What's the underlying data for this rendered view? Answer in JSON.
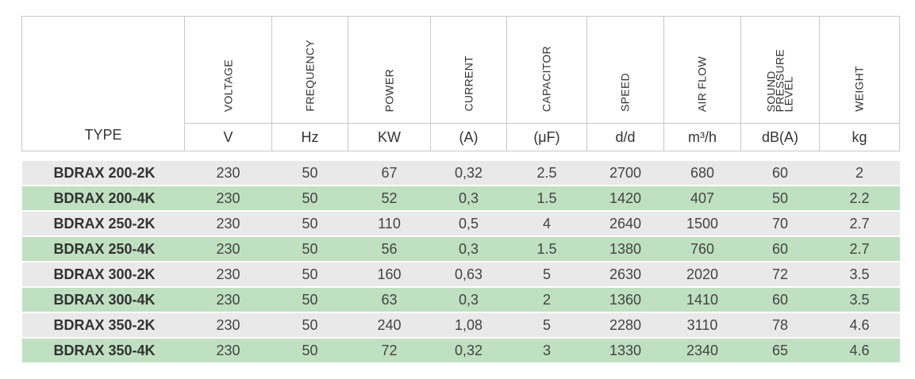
{
  "headers": {
    "type": "TYPE",
    "columns": [
      {
        "label": "VOLTAGE",
        "unit": "V"
      },
      {
        "label": "FREQUENCY",
        "unit": "Hz"
      },
      {
        "label": "POWER",
        "unit": "KW"
      },
      {
        "label": "CURRENT",
        "unit": "(A)"
      },
      {
        "label": "CAPACITOR",
        "unit": "(μF)"
      },
      {
        "label": "SPEED",
        "unit": "d/d"
      },
      {
        "label": "AIR FLOW",
        "unit": "m³/h"
      },
      {
        "label": "SOUND\nPRESSURE\nLEVEL",
        "unit": "dB(A)"
      },
      {
        "label": "WEIGHT",
        "unit": "kg"
      }
    ]
  },
  "rows": [
    {
      "type": "BDRAX 200-2K",
      "voltage": "230",
      "frequency": "50",
      "power": "67",
      "current": "0,32",
      "capacitor": "2.5",
      "speed": "2700",
      "air_flow": "680",
      "sound": "60",
      "weight": "2"
    },
    {
      "type": "BDRAX 200-4K",
      "voltage": "230",
      "frequency": "50",
      "power": "52",
      "current": "0,3",
      "capacitor": "1.5",
      "speed": "1420",
      "air_flow": "407",
      "sound": "50",
      "weight": "2.2"
    },
    {
      "type": "BDRAX 250-2K",
      "voltage": "230",
      "frequency": "50",
      "power": "110",
      "current": "0,5",
      "capacitor": "4",
      "speed": "2640",
      "air_flow": "1500",
      "sound": "70",
      "weight": "2.7"
    },
    {
      "type": "BDRAX 250-4K",
      "voltage": "230",
      "frequency": "50",
      "power": "56",
      "current": "0,3",
      "capacitor": "1.5",
      "speed": "1380",
      "air_flow": "760",
      "sound": "60",
      "weight": "2.7"
    },
    {
      "type": "BDRAX 300-2K",
      "voltage": "230",
      "frequency": "50",
      "power": "160",
      "current": "0,63",
      "capacitor": "5",
      "speed": "2630",
      "air_flow": "2020",
      "sound": "72",
      "weight": "3.5"
    },
    {
      "type": "BDRAX 300-4K",
      "voltage": "230",
      "frequency": "50",
      "power": "63",
      "current": "0,3",
      "capacitor": "2",
      "speed": "1360",
      "air_flow": "1410",
      "sound": "60",
      "weight": "3.5"
    },
    {
      "type": "BDRAX 350-2K",
      "voltage": "230",
      "frequency": "50",
      "power": "240",
      "current": "1,08",
      "capacitor": "5",
      "speed": "2280",
      "air_flow": "3110",
      "sound": "78",
      "weight": "4.6"
    },
    {
      "type": "BDRAX 350-4K",
      "voltage": "230",
      "frequency": "50",
      "power": "72",
      "current": "0,32",
      "capacitor": "3",
      "speed": "1330",
      "air_flow": "2340",
      "sound": "65",
      "weight": "4.6"
    }
  ],
  "colors": {
    "row_grey": "#e9e9ea",
    "row_green": "#bfe0c1",
    "border": "#c8c8c8"
  }
}
